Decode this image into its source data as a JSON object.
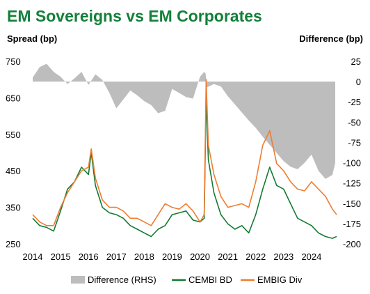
{
  "title": "EM Sovereigns vs EM Corporates",
  "colors": {
    "title": "#13803a",
    "cembi": "#137a33",
    "embig": "#ee7d31",
    "difference": "#bdbdbd"
  },
  "chart_data": {
    "type": "line",
    "left_axis_title": "Spread (bp)",
    "right_axis_title": "Difference (bp)",
    "left_ylim": [
      250,
      750
    ],
    "left_ticks": [
      "750",
      "650",
      "550",
      "450",
      "350",
      "250"
    ],
    "right_ylim": [
      -200,
      25
    ],
    "right_ticks": [
      "25",
      "0",
      "-25",
      "-50",
      "-75",
      "-100",
      "-125",
      "-150",
      "-175",
      "-200"
    ],
    "xlim": [
      2014,
      2024.9
    ],
    "x_ticks": [
      "2014",
      "2015",
      "2016",
      "2017",
      "2018",
      "2019",
      "2020",
      "2021",
      "2022",
      "2023",
      "2024"
    ],
    "legend_position": "bottom",
    "series": [
      {
        "name": "Difference (RHS)",
        "type": "area",
        "axis": "right",
        "x": [
          2014.0,
          2014.25,
          2014.5,
          2014.75,
          2015.0,
          2015.25,
          2015.5,
          2015.75,
          2016.0,
          2016.25,
          2016.5,
          2016.75,
          2017.0,
          2017.25,
          2017.5,
          2017.75,
          2018.0,
          2018.25,
          2018.5,
          2018.75,
          2019.0,
          2019.25,
          2019.5,
          2019.75,
          2020.0,
          2020.15,
          2020.2,
          2020.25,
          2020.5,
          2020.75,
          2021.0,
          2021.25,
          2021.5,
          2021.75,
          2022.0,
          2022.25,
          2022.5,
          2022.75,
          2023.0,
          2023.25,
          2023.5,
          2023.75,
          2024.0,
          2024.25,
          2024.5,
          2024.75,
          2024.85
        ],
        "values": [
          5,
          18,
          22,
          12,
          6,
          -3,
          4,
          12,
          -4,
          9,
          2,
          -14,
          -33,
          -22,
          -11,
          -17,
          -24,
          -29,
          -39,
          -36,
          -9,
          -14,
          -19,
          -21,
          6,
          12,
          10,
          -7,
          -3,
          -6,
          -18,
          -28,
          -38,
          -48,
          -57,
          -68,
          -78,
          -88,
          -98,
          -105,
          -108,
          -100,
          -90,
          -110,
          -120,
          -115,
          -100
        ]
      },
      {
        "name": "CEMBI BD",
        "type": "line",
        "axis": "left",
        "x": [
          2014.0,
          2014.25,
          2014.5,
          2014.75,
          2015.0,
          2015.25,
          2015.5,
          2015.75,
          2016.0,
          2016.1,
          2016.25,
          2016.5,
          2016.75,
          2017.0,
          2017.25,
          2017.5,
          2017.75,
          2018.0,
          2018.25,
          2018.5,
          2018.75,
          2019.0,
          2019.25,
          2019.5,
          2019.75,
          2020.0,
          2020.15,
          2020.22,
          2020.3,
          2020.5,
          2020.75,
          2021.0,
          2021.25,
          2021.5,
          2021.75,
          2022.0,
          2022.25,
          2022.5,
          2022.75,
          2023.0,
          2023.25,
          2023.5,
          2023.75,
          2024.0,
          2024.25,
          2024.5,
          2024.75,
          2024.9
        ],
        "values": [
          320,
          300,
          295,
          285,
          340,
          400,
          420,
          460,
          440,
          500,
          410,
          350,
          335,
          330,
          320,
          300,
          290,
          280,
          270,
          290,
          300,
          330,
          335,
          340,
          315,
          310,
          320,
          650,
          480,
          390,
          330,
          305,
          290,
          300,
          280,
          330,
          400,
          460,
          410,
          400,
          360,
          320,
          310,
          300,
          280,
          270,
          265,
          270
        ]
      },
      {
        "name": "EMBIG Div",
        "type": "line",
        "axis": "left",
        "x": [
          2014.0,
          2014.25,
          2014.5,
          2014.75,
          2015.0,
          2015.25,
          2015.5,
          2015.75,
          2016.0,
          2016.1,
          2016.25,
          2016.5,
          2016.75,
          2017.0,
          2017.25,
          2017.5,
          2017.75,
          2018.0,
          2018.25,
          2018.5,
          2018.75,
          2019.0,
          2019.25,
          2019.5,
          2019.75,
          2020.0,
          2020.15,
          2020.22,
          2020.3,
          2020.5,
          2020.75,
          2021.0,
          2021.25,
          2021.5,
          2021.75,
          2022.0,
          2022.25,
          2022.5,
          2022.75,
          2023.0,
          2023.25,
          2023.5,
          2023.75,
          2024.0,
          2024.25,
          2024.5,
          2024.75,
          2024.9
        ],
        "values": [
          330,
          310,
          300,
          300,
          350,
          390,
          420,
          450,
          460,
          510,
          430,
          370,
          350,
          350,
          340,
          320,
          320,
          310,
          300,
          330,
          360,
          350,
          345,
          360,
          340,
          310,
          330,
          700,
          520,
          440,
          380,
          350,
          355,
          360,
          350,
          420,
          520,
          560,
          470,
          450,
          420,
          400,
          395,
          420,
          400,
          380,
          345,
          330
        ]
      }
    ]
  }
}
